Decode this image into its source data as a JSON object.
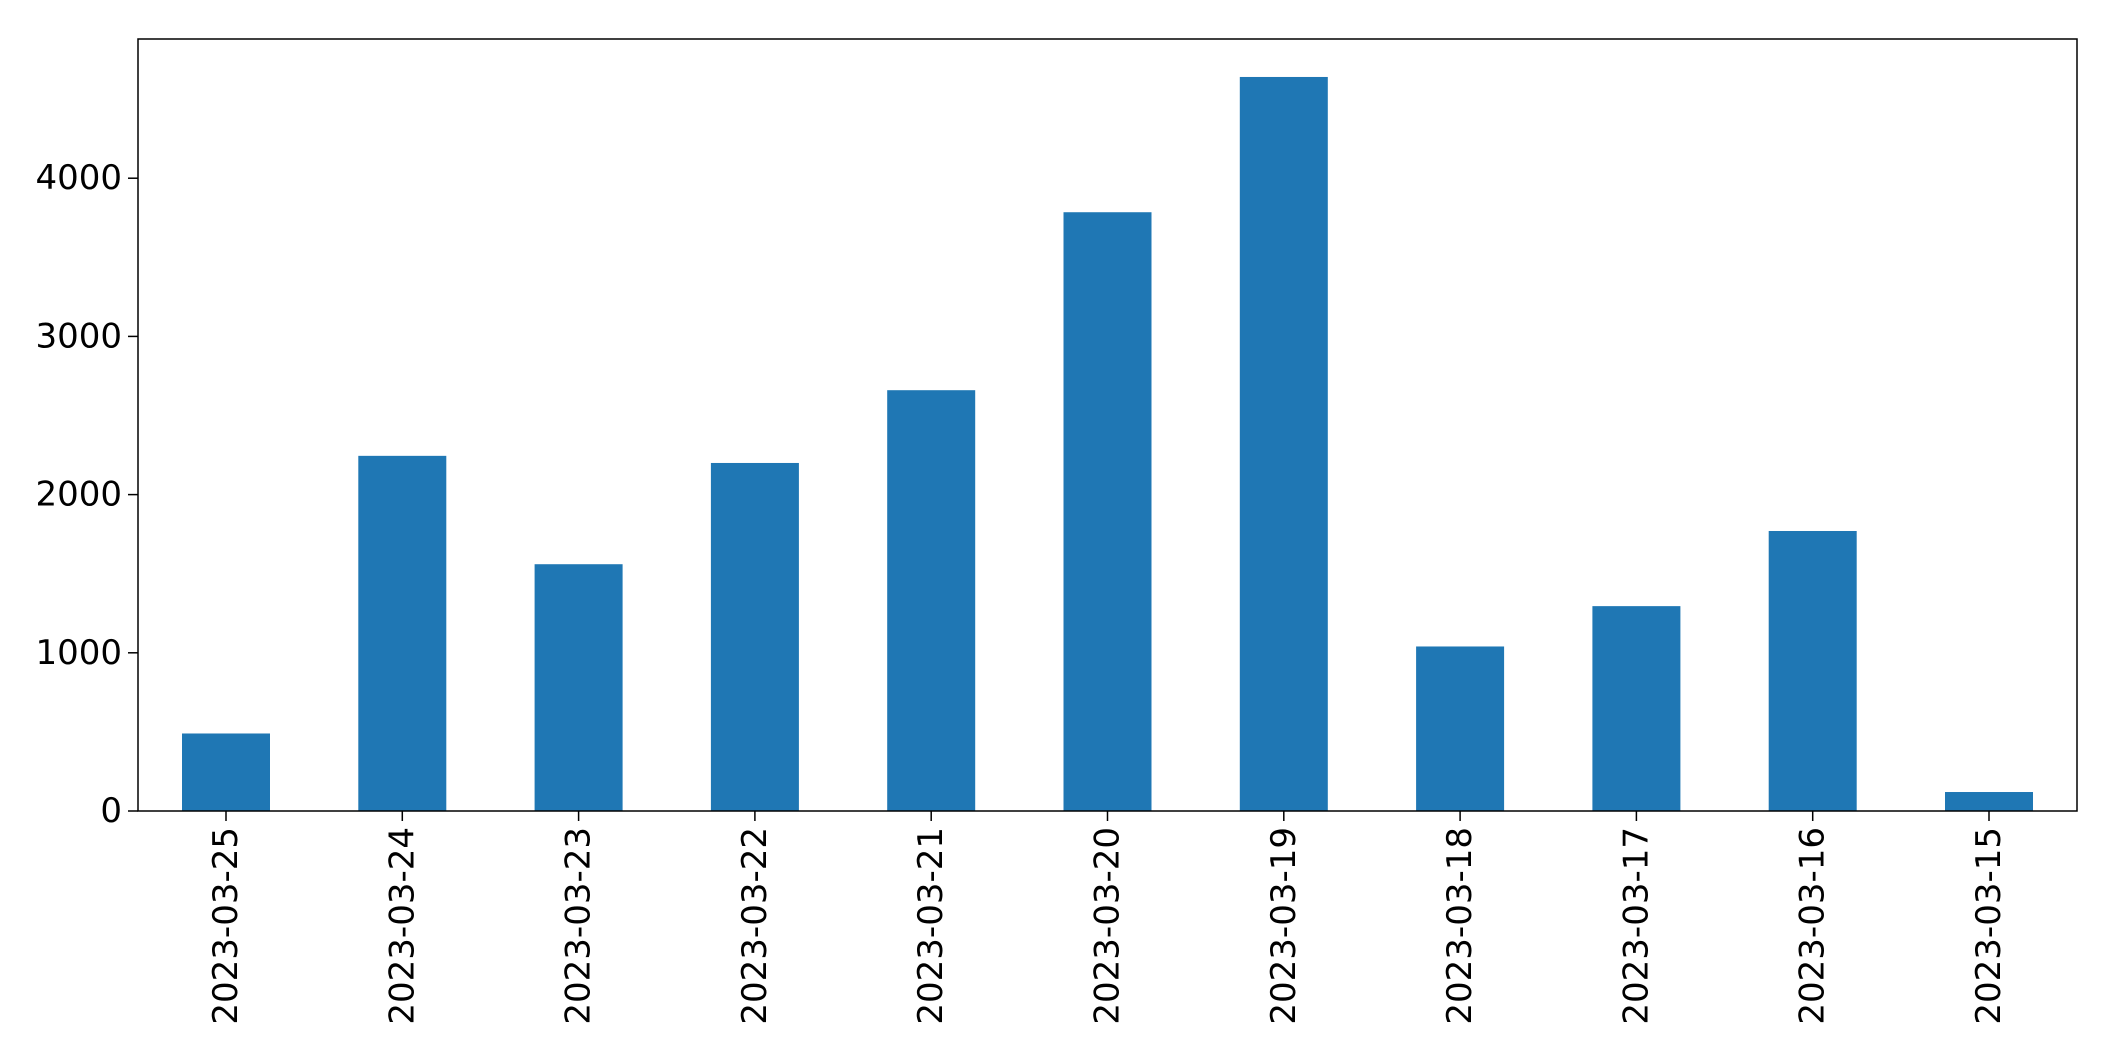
{
  "chart_data": {
    "type": "bar",
    "categories": [
      "2023-03-25",
      "2023-03-24",
      "2023-03-23",
      "2023-03-22",
      "2023-03-21",
      "2023-03-20",
      "2023-03-19",
      "2023-03-18",
      "2023-03-17",
      "2023-03-16",
      "2023-03-15"
    ],
    "values": [
      490,
      2245,
      1560,
      2200,
      2660,
      3785,
      4640,
      1040,
      1295,
      1770,
      120
    ],
    "title": "",
    "xlabel": "",
    "ylabel": "",
    "ylim": [
      0,
      4880
    ],
    "yticks": [
      0,
      1000,
      2000,
      3000,
      4000
    ],
    "ytick_labels": [
      "0",
      "1000",
      "2000",
      "3000",
      "4000"
    ],
    "grid": false,
    "legend": "none",
    "bar_color": "#1f77b4"
  }
}
